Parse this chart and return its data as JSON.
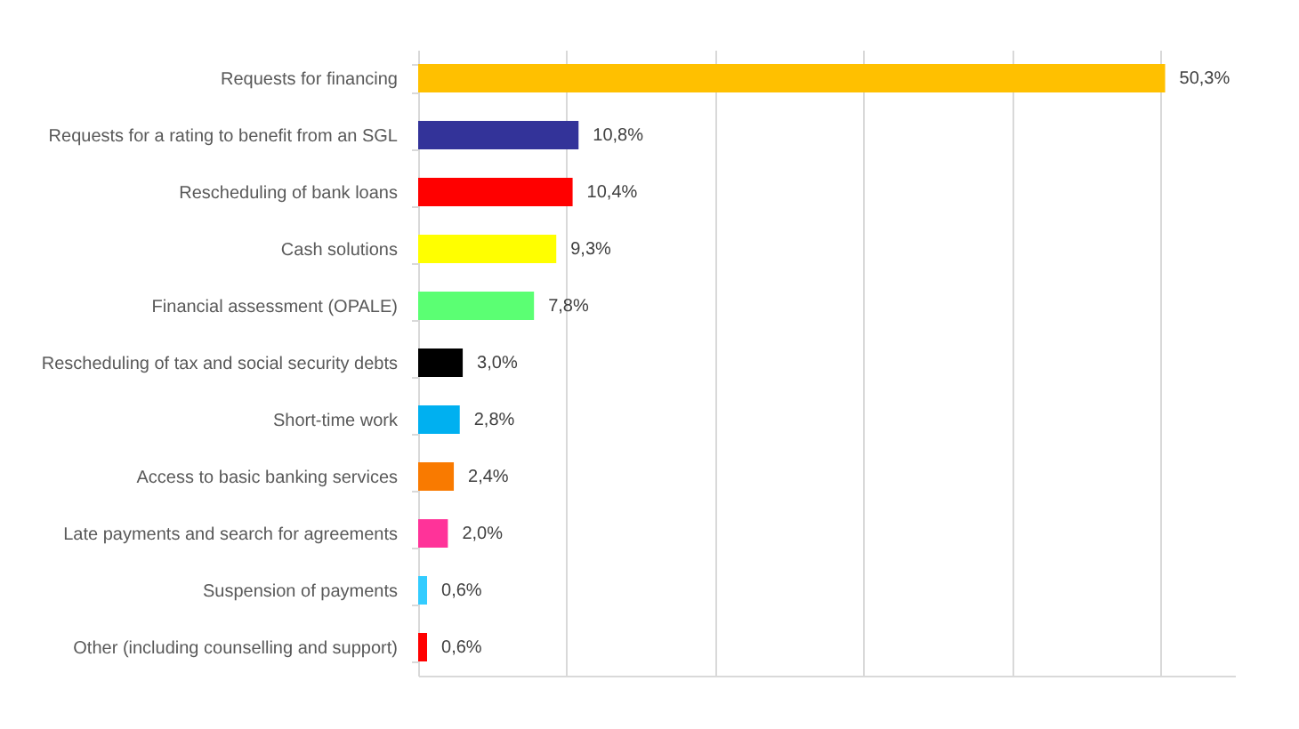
{
  "chart_data": {
    "type": "bar",
    "orientation": "horizontal",
    "categories": [
      "Requests for financing",
      "Requests for a rating to benefit from an SGL",
      "Rescheduling of bank loans",
      "Cash solutions",
      "Financial assessment (OPALE)",
      "Rescheduling of tax and social security debts",
      "Short-time work",
      "Access to basic banking services",
      "Late payments and search for agreements",
      "Suspension of payments",
      "Other (including counselling and support)"
    ],
    "values": [
      50.3,
      10.8,
      10.4,
      9.3,
      7.8,
      3.0,
      2.8,
      2.4,
      2.0,
      0.6,
      0.6
    ],
    "colors": [
      "#ffc000",
      "#333399",
      "#ff0000",
      "#ffff00",
      "#5bff73",
      "#000000",
      "#00b0f0",
      "#f97a00",
      "#ff3399",
      "#33ccff",
      "#ff0000"
    ],
    "value_labels": [
      "50,3%",
      "10,8%",
      "10,4%",
      "9,3%",
      "7,8%",
      "3,0%",
      "2,8%",
      "2,4%",
      "2,0%",
      "0,6%",
      "0,6%"
    ],
    "xlim": [
      0,
      55
    ],
    "xticks": [
      {
        "value": 0,
        "label": null
      },
      {
        "value": 10,
        "label": null
      },
      {
        "value": 20,
        "label": null
      },
      {
        "value": 30,
        "label": null
      },
      {
        "value": 40,
        "label": null
      },
      {
        "value": 50,
        "label": null
      }
    ],
    "grid": "x",
    "tick_labels": "y"
  }
}
